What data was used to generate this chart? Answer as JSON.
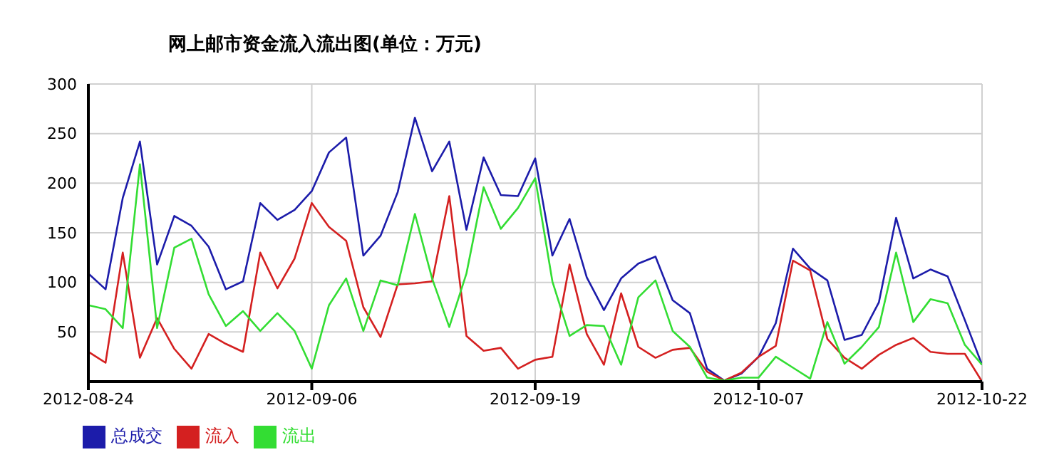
{
  "chart_data": {
    "type": "line",
    "title": "网上邮市资金流入流出图(单位：万元)",
    "categories": [
      "2012-08-24",
      null,
      null,
      null,
      null,
      null,
      null,
      null,
      null,
      null,
      null,
      null,
      null,
      "2012-09-06",
      null,
      null,
      null,
      null,
      null,
      null,
      null,
      null,
      null,
      null,
      null,
      null,
      "2012-09-19",
      null,
      null,
      null,
      null,
      null,
      null,
      null,
      null,
      null,
      null,
      null,
      null,
      "2012-10-07",
      null,
      null,
      null,
      null,
      null,
      null,
      null,
      null,
      null,
      null,
      null,
      null,
      "2012-10-22"
    ],
    "series": [
      {
        "name": "总成交",
        "color": "#1c1caa",
        "values": [
          109,
          93,
          185,
          242,
          118,
          167,
          157,
          136,
          93,
          101,
          180,
          163,
          173,
          192,
          231,
          246,
          127,
          147,
          191,
          266,
          212,
          242,
          153,
          226,
          188,
          187,
          225,
          127,
          164,
          105,
          72,
          104,
          119,
          126,
          82,
          69,
          13,
          1,
          8,
          25,
          59,
          134,
          114,
          102,
          42,
          47,
          80,
          165,
          104,
          113,
          106,
          62,
          17
        ]
      },
      {
        "name": "流入",
        "color": "#d42020",
        "values": [
          30,
          19,
          130,
          24,
          64,
          33,
          13,
          48,
          38,
          30,
          130,
          94,
          124,
          180,
          156,
          142,
          75,
          45,
          98,
          99,
          101,
          187,
          46,
          31,
          34,
          13,
          22,
          25,
          118,
          48,
          17,
          89,
          35,
          24,
          32,
          34,
          10,
          1,
          9,
          25,
          36,
          122,
          112,
          43,
          24,
          13,
          27,
          37,
          44,
          30,
          28,
          28,
          0
        ]
      },
      {
        "name": "流出",
        "color": "#33dd33",
        "values": [
          77,
          73,
          54,
          219,
          54,
          135,
          144,
          88,
          56,
          71,
          51,
          69,
          51,
          13,
          77,
          104,
          51,
          102,
          97,
          169,
          104,
          55,
          109,
          196,
          154,
          175,
          205,
          101,
          46,
          57,
          56,
          17,
          85,
          102,
          51,
          35,
          4,
          1,
          4,
          4,
          25,
          14,
          3,
          60,
          18,
          35,
          55,
          130,
          60,
          83,
          79,
          37,
          17
        ]
      }
    ],
    "ylim": [
      0,
      300
    ],
    "yticks": [
      {
        "value": 0,
        "label": null
      },
      50,
      100,
      150,
      200,
      250,
      300
    ],
    "grid": true,
    "legend": "bottom left",
    "marker": "none",
    "line_style": "solid"
  }
}
